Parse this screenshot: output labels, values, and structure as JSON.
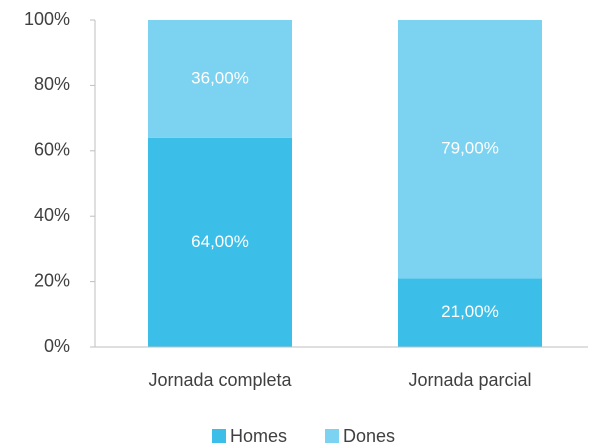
{
  "chart_data": {
    "type": "stacked_bar",
    "categories": [
      "Jornada completa",
      "Jornada parcial"
    ],
    "series": [
      {
        "name": "Homes",
        "color": "#3bbfe9",
        "values": [
          64,
          21
        ],
        "value_labels": [
          "64,00%",
          "21,00%"
        ]
      },
      {
        "name": "Dones",
        "color": "#7bd3f1",
        "values": [
          36,
          79
        ],
        "value_labels": [
          "36,00%",
          "79,00%"
        ]
      }
    ],
    "ylim": [
      0,
      100
    ],
    "yticks": [
      {
        "value": 0,
        "label": "0%"
      },
      {
        "value": 20,
        "label": "20%"
      },
      {
        "value": 40,
        "label": "40%"
      },
      {
        "value": 60,
        "label": "60%"
      },
      {
        "value": 80,
        "label": "80%"
      },
      {
        "value": 100,
        "label": "100%"
      }
    ],
    "legend": "bottom"
  }
}
